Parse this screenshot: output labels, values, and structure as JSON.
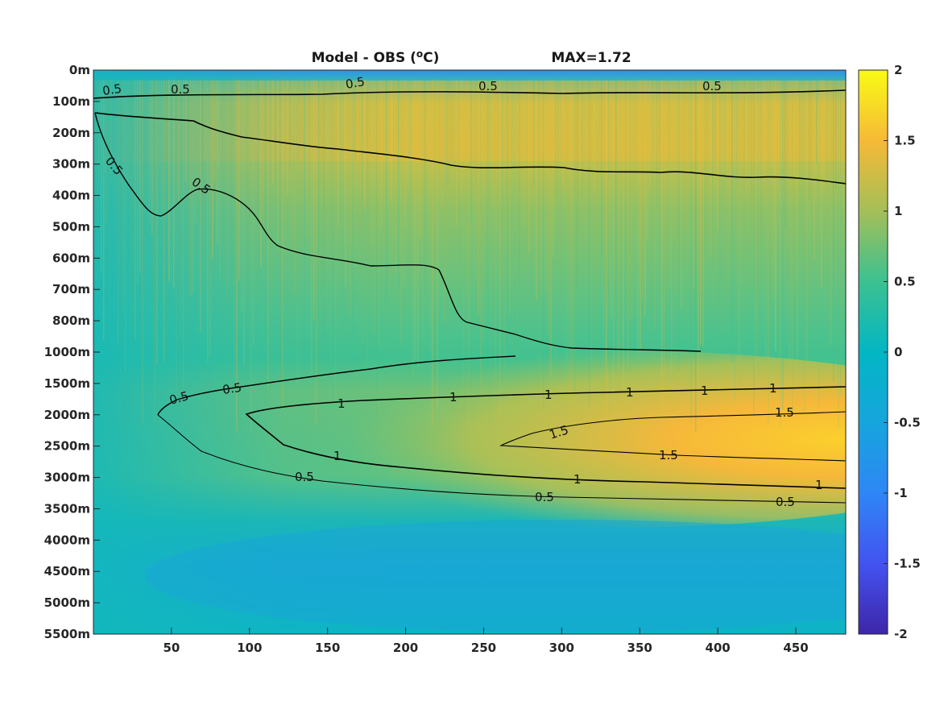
{
  "chart_data": {
    "type": "heatmap",
    "title": "Model - OBS (",
    "title_superscript": "o",
    "title_unit": "C)",
    "annotation": "MAX=1.72",
    "xlim": [
      0,
      482
    ],
    "x_ticks": [
      50,
      100,
      150,
      200,
      250,
      300,
      350,
      400,
      450
    ],
    "y_ticks": [
      "0m",
      "100m",
      "200m",
      "300m",
      "400m",
      "500m",
      "600m",
      "700m",
      "800m",
      "1000m",
      "1500m",
      "2000m",
      "2500m",
      "3000m",
      "3500m",
      "4000m",
      "4500m",
      "5000m",
      "5500m"
    ],
    "colorbar": {
      "range": [
        -2,
        2
      ],
      "ticks": [
        "2",
        "1.5",
        "1",
        "0.5",
        "0",
        "-0.5",
        "-1",
        "-1.5",
        "-2"
      ],
      "colormap": "parula"
    },
    "contour_levels": [
      0.5,
      1,
      1.5
    ],
    "contour_labels": {
      "upper_levels": [
        "0.5",
        "0.5",
        "0.5",
        "0.5",
        "0.5",
        "0.5",
        "0.5"
      ],
      "deep_levels": [
        "0.5",
        "0.5",
        "1",
        "1",
        "1",
        "1",
        "1",
        "1",
        "1.5",
        "1.5",
        "1.5",
        "1",
        "1",
        "1",
        "0.5",
        "0.5",
        "0.5"
      ]
    }
  }
}
